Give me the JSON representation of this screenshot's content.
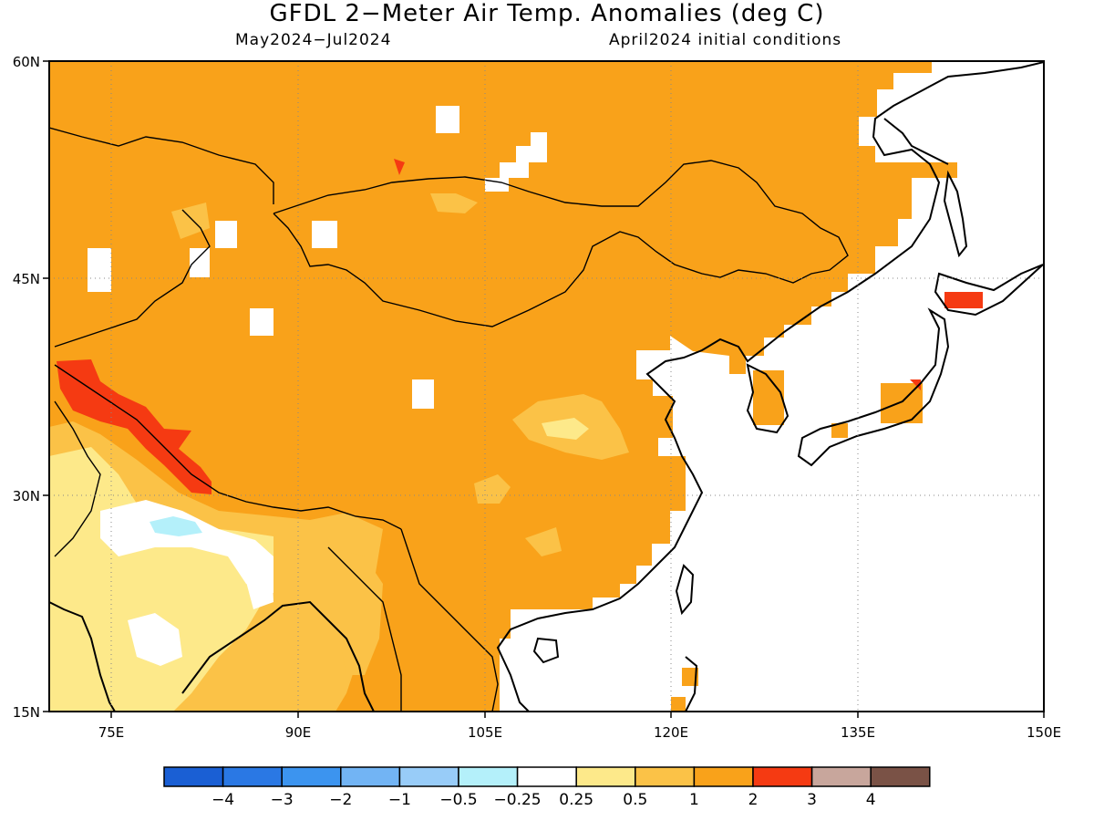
{
  "header": {
    "title": "GFDL 2−Meter Air Temp. Anomalies (deg C)",
    "period": "May2024−Jul2024",
    "init": "April2024 initial conditions"
  },
  "map": {
    "lon_range": [
      70,
      150
    ],
    "lat_range": [
      15,
      60
    ],
    "lon_ticks": [
      "75E",
      "90E",
      "105E",
      "120E",
      "135E",
      "150E"
    ],
    "lat_ticks": [
      "60N",
      "45N",
      "30N",
      "15N"
    ],
    "lon_tick_values": [
      75,
      90,
      105,
      120,
      135,
      150
    ],
    "lat_tick_values": [
      60,
      45,
      30,
      15
    ],
    "grid_lines": true
  },
  "colorbar": {
    "colors": [
      "#1a5fd4",
      "#2a78e4",
      "#3c94ef",
      "#72b4f4",
      "#98ccf8",
      "#b4f0fa",
      "#ffffff",
      "#fde98a",
      "#fbc247",
      "#f9a21a",
      "#f53a12",
      "#c8a69c",
      "#7a5246"
    ],
    "labels": [
      "−4",
      "−3",
      "−2",
      "−1",
      "−0.5",
      "−0.25",
      "0.25",
      "0.5",
      "1",
      "2",
      "3",
      "4"
    ]
  },
  "colors": {
    "anomaly_1_2": "#f9a21a",
    "anomaly_0_5_1": "#fbc247",
    "anomaly_0_25_0_5": "#fde98a",
    "anomaly_2_3": "#f53a12",
    "anomaly_neg": "#b4f0fa"
  }
}
